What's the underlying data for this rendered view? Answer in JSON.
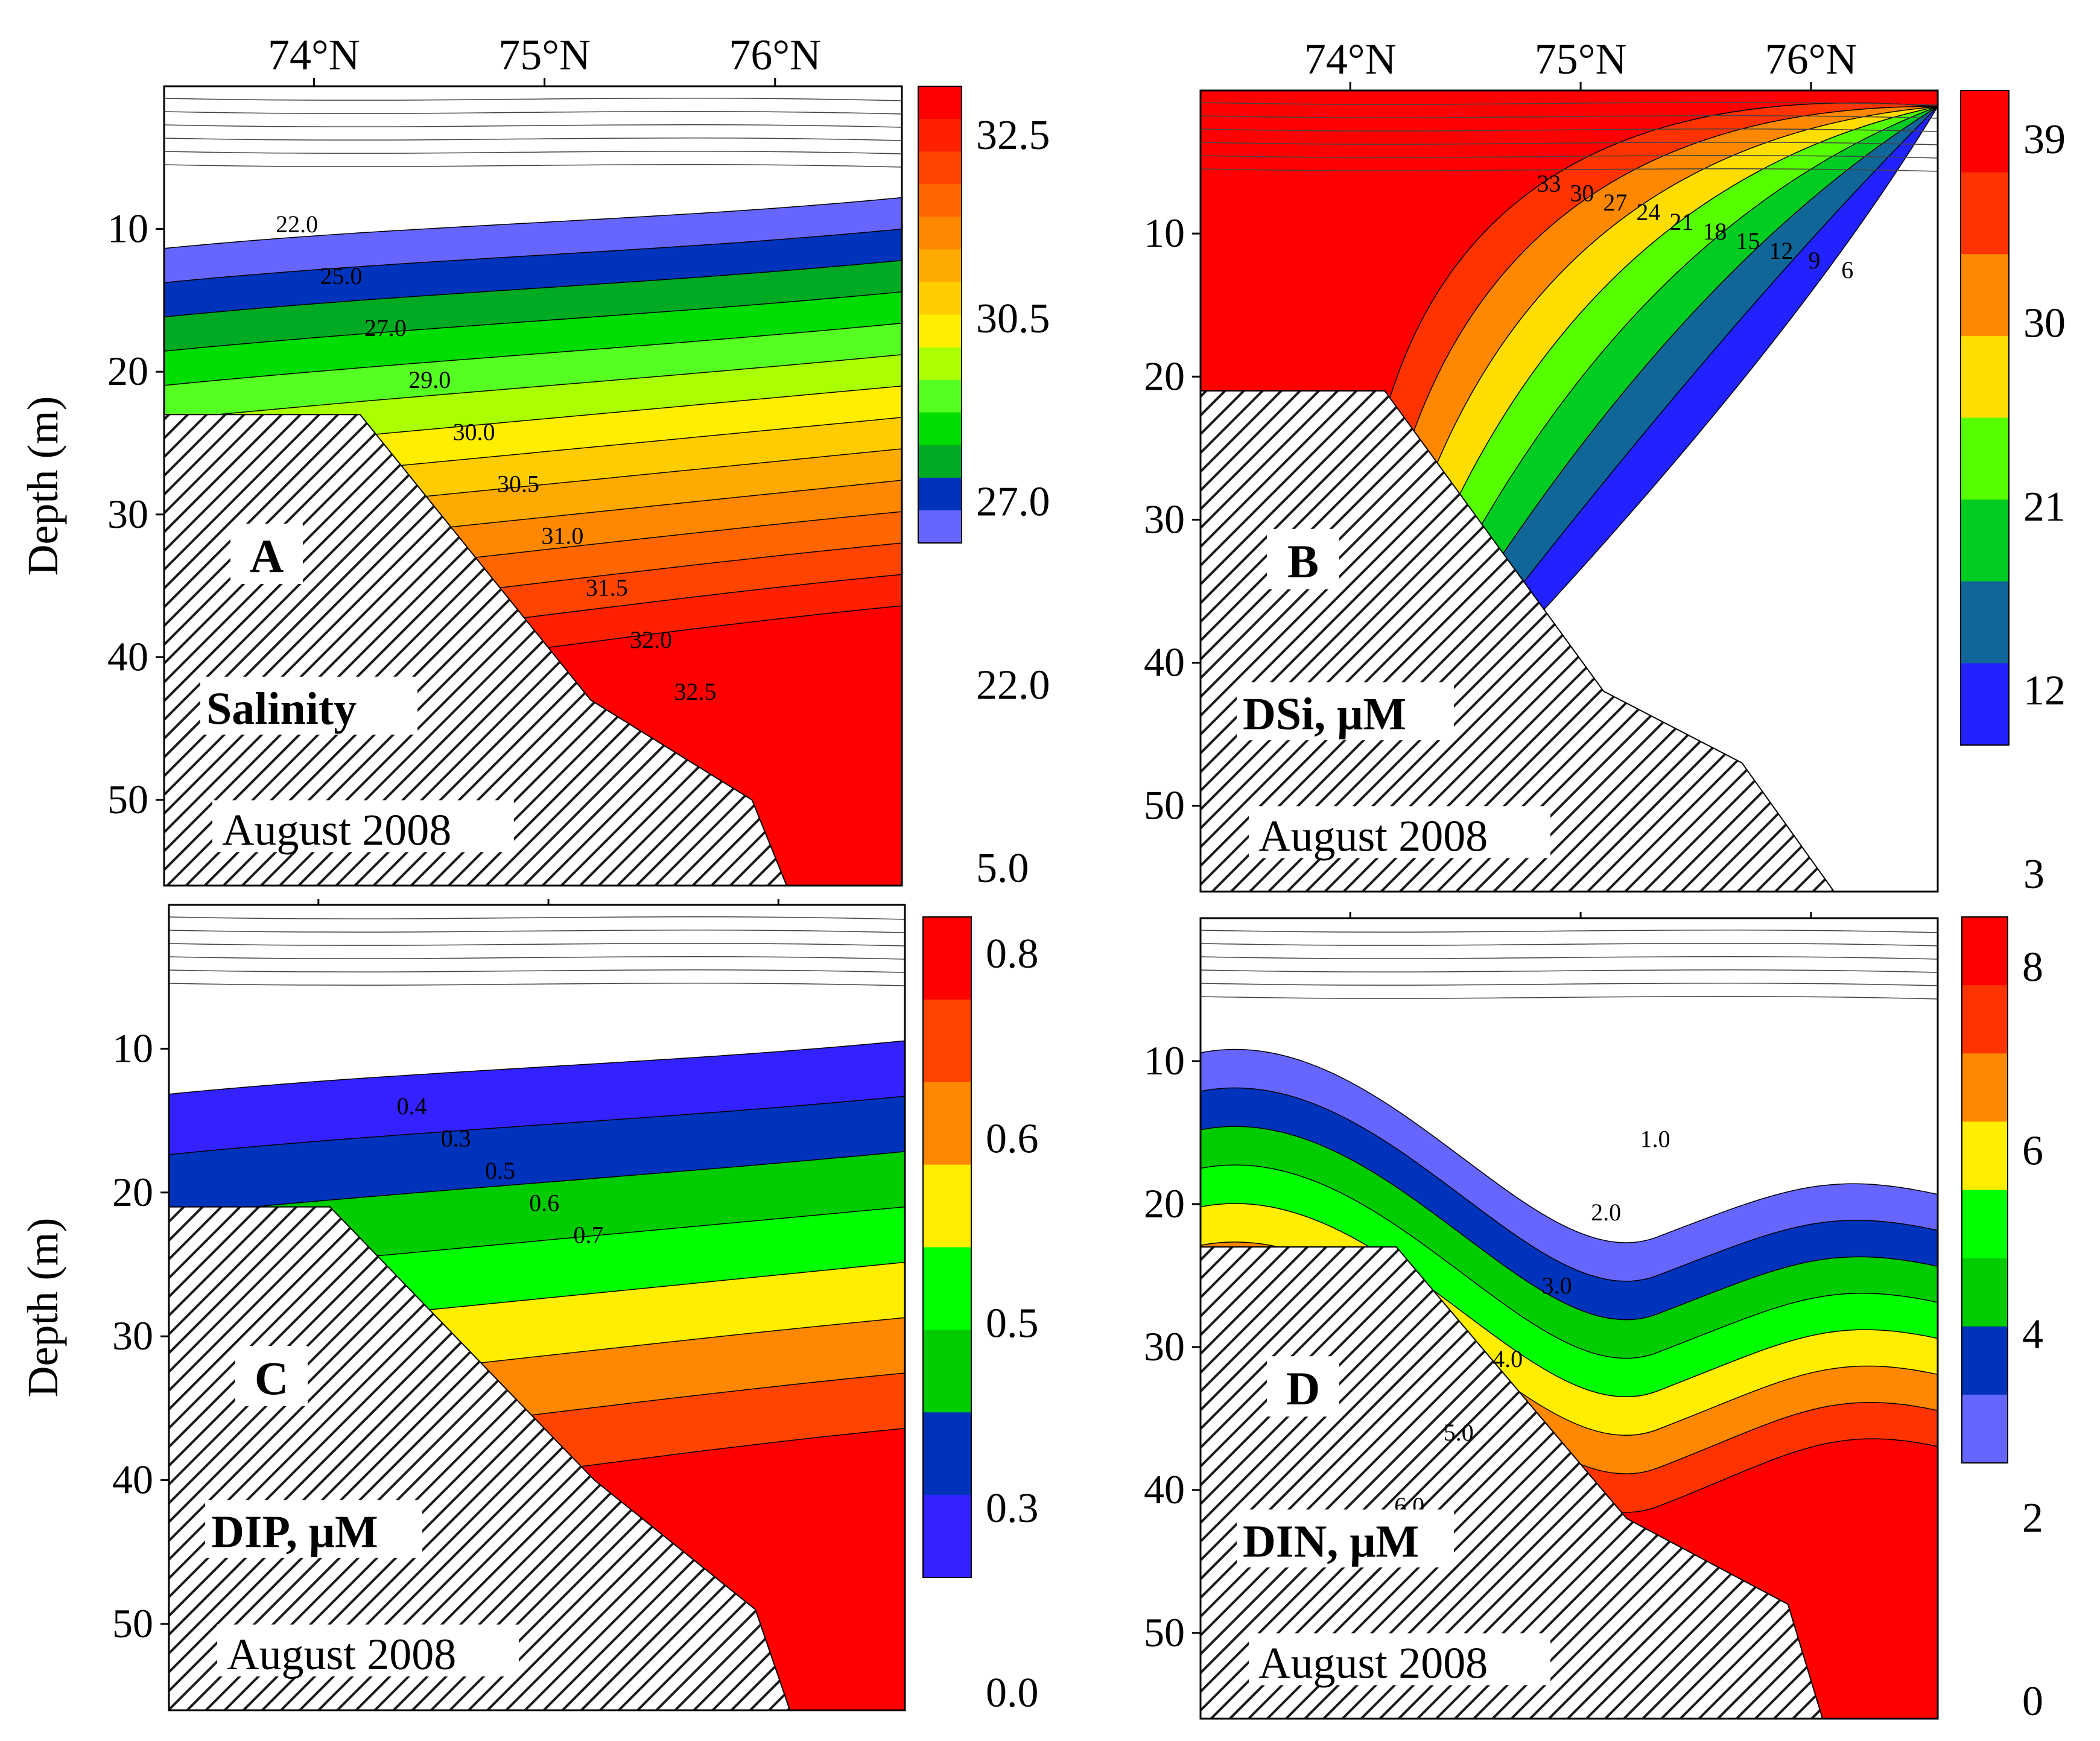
{
  "figure": {
    "depth_axis_label": "Depth (m)",
    "date_label": "August 2008"
  },
  "chart_data": [
    {
      "panel": "A",
      "type": "heatmap",
      "title": "Salinity",
      "subtitle": "August 2008",
      "xlabel": "",
      "ylabel": "Depth (m)",
      "x_ticks": [
        "74°N",
        "75°N",
        "76°N"
      ],
      "x_tick_values": [
        74,
        75,
        76
      ],
      "xlim": [
        73.35,
        76.55
      ],
      "y_ticks": [
        "10",
        "20",
        "30",
        "40",
        "50"
      ],
      "y_tick_values": [
        10,
        20,
        30,
        40,
        50
      ],
      "ylim": [
        0,
        56
      ],
      "colorbar_ticks": [
        "32.5",
        "30.5",
        "27.0",
        "22.0",
        "5.0"
      ],
      "colorbar_colors": [
        "#ff0000",
        "#ff2000",
        "#ff4400",
        "#ff6600",
        "#ff8800",
        "#ffaa00",
        "#ffcc00",
        "#ffee00",
        "#aaff00",
        "#55ff22",
        "#00dd00",
        "#00aa22",
        "#0033bb",
        "#6666ff"
      ],
      "contour_labels": [
        "22.0",
        "25.0",
        "27.0",
        "29.0",
        "30.0",
        "30.5",
        "31.0",
        "31.5",
        "32.0",
        "32.5"
      ],
      "bottom_profile": [
        [
          73.35,
          23
        ],
        [
          74.2,
          23
        ],
        [
          75.2,
          43
        ],
        [
          75.9,
          50
        ],
        [
          76.05,
          56
        ]
      ]
    },
    {
      "panel": "B",
      "type": "heatmap",
      "title": "DSi, μM",
      "subtitle": "August 2008",
      "xlabel": "",
      "ylabel": "",
      "x_ticks": [
        "74°N",
        "75°N",
        "76°N"
      ],
      "x_tick_values": [
        74,
        75,
        76
      ],
      "xlim": [
        73.35,
        76.55
      ],
      "y_ticks": [
        "10",
        "20",
        "30",
        "40",
        "50"
      ],
      "y_tick_values": [
        10,
        20,
        30,
        40,
        50
      ],
      "ylim": [
        0,
        56
      ],
      "colorbar_ticks": [
        "39",
        "30",
        "21",
        "12",
        "3"
      ],
      "colorbar_colors": [
        "#ff0000",
        "#ff3300",
        "#ff8800",
        "#ffdd00",
        "#55ff00",
        "#00cc22",
        "#116699",
        "#2222ff"
      ],
      "contour_labels": [
        "33",
        "30",
        "27",
        "24",
        "21",
        "18",
        "15",
        "12",
        "9",
        "6"
      ],
      "bottom_profile": [
        [
          73.35,
          21
        ],
        [
          74.15,
          21
        ],
        [
          75.1,
          42
        ],
        [
          75.7,
          47
        ],
        [
          76.1,
          56
        ]
      ]
    },
    {
      "panel": "C",
      "type": "heatmap",
      "title": "DIP, μM",
      "subtitle": "August 2008",
      "xlabel": "",
      "ylabel": "Depth (m)",
      "x_ticks": [],
      "xlim": [
        73.35,
        76.55
      ],
      "y_ticks": [
        "10",
        "20",
        "30",
        "40",
        "50"
      ],
      "y_tick_values": [
        10,
        20,
        30,
        40,
        50
      ],
      "ylim": [
        0,
        56
      ],
      "colorbar_ticks": [
        "0.8",
        "0.6",
        "0.5",
        "0.3",
        "0.0"
      ],
      "colorbar_colors": [
        "#ff0000",
        "#ff4400",
        "#ff8800",
        "#ffee00",
        "#00ff00",
        "#00cc00",
        "#0033bb",
        "#3322ff"
      ],
      "contour_labels": [
        "0.4",
        "0.3",
        "0.5",
        "0.6",
        "0.7"
      ],
      "bottom_profile": [
        [
          73.35,
          21
        ],
        [
          74.05,
          21
        ],
        [
          75.2,
          40
        ],
        [
          75.9,
          49
        ],
        [
          76.05,
          56
        ]
      ]
    },
    {
      "panel": "D",
      "type": "heatmap",
      "title": "DIN, μM",
      "subtitle": "August 2008",
      "xlabel": "",
      "ylabel": "",
      "x_ticks": [],
      "xlim": [
        73.35,
        76.55
      ],
      "y_ticks": [
        "10",
        "20",
        "30",
        "40",
        "50"
      ],
      "y_tick_values": [
        10,
        20,
        30,
        40,
        50
      ],
      "ylim": [
        0,
        56
      ],
      "colorbar_ticks": [
        "8",
        "6",
        "4",
        "2",
        "0"
      ],
      "colorbar_colors": [
        "#ff0000",
        "#ff3300",
        "#ff8800",
        "#ffee00",
        "#00ff00",
        "#00cc00",
        "#0033bb",
        "#6666ff"
      ],
      "contour_labels": [
        "1.0",
        "2.0",
        "3.0",
        "4.0",
        "5.0",
        "6.0"
      ],
      "bottom_profile": [
        [
          73.35,
          23
        ],
        [
          74.2,
          23
        ],
        [
          75.2,
          42
        ],
        [
          75.9,
          48
        ],
        [
          76.05,
          56
        ]
      ]
    }
  ]
}
